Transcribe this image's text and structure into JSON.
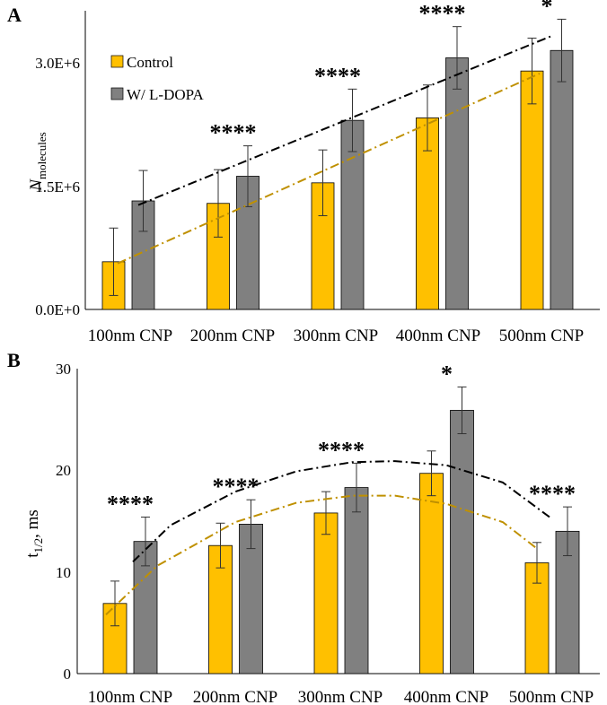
{
  "chart_data": [
    {
      "panel_label": "A",
      "type": "bar",
      "categories": [
        "100nm CNP",
        "200nm CNP",
        "300nm CNP",
        "400nm CNP",
        "500nm CNP"
      ],
      "series": [
        {
          "name": "Control",
          "values": [
            580000,
            1290000,
            1540000,
            2330000,
            2900000
          ],
          "errors": [
            410000,
            410000,
            400000,
            400000,
            400000
          ],
          "color": "#FFC000"
        },
        {
          "name": "W/ L-DOPA",
          "values": [
            1320000,
            1620000,
            2300000,
            3060000,
            3150000
          ],
          "errors": [
            370000,
            370000,
            380000,
            380000,
            380000
          ],
          "color": "#808080"
        }
      ],
      "significance": [
        "",
        "****",
        "****",
        "****",
        "*"
      ],
      "trendlines": [
        {
          "series": "W/ L-DOPA",
          "color": "#000000",
          "style": "dash-dot",
          "from": 1270000,
          "to": 3320000
        },
        {
          "series": "Control",
          "color": "#BF9000",
          "style": "dash-dot",
          "from": 560000,
          "to": 2870000
        }
      ],
      "yticks": [
        "0.0E+0",
        "1.5E+6",
        "3.0E+6"
      ],
      "ylim": [
        0,
        3600000
      ],
      "ylabel_main": "N",
      "ylabel_sub": "molecules",
      "legend_position": "top-left"
    },
    {
      "panel_label": "B",
      "type": "bar",
      "categories": [
        "100nm CNP",
        "200nm CNP",
        "300nm CNP",
        "400nm CNP",
        "500nm CNP"
      ],
      "series": [
        {
          "name": "Control",
          "values": [
            6.9,
            12.6,
            15.8,
            19.7,
            10.9
          ],
          "errors": [
            2.2,
            2.2,
            2.1,
            2.2,
            2.0
          ],
          "color": "#FFC000"
        },
        {
          "name": "W/ L-DOPA",
          "values": [
            13.0,
            14.7,
            18.3,
            25.9,
            14.0
          ],
          "errors": [
            2.4,
            2.4,
            2.4,
            2.3,
            2.4
          ],
          "color": "#808080"
        }
      ],
      "significance": [
        "****",
        "****",
        "****",
        "*",
        "****"
      ],
      "trendlines": [
        {
          "series": "W/ L-DOPA",
          "color": "#000000",
          "style": "dash-dot"
        },
        {
          "series": "Control",
          "color": "#BF9000",
          "style": "dash-dot"
        }
      ],
      "yticks": [
        "0",
        "10",
        "20",
        "30"
      ],
      "ylim": [
        0,
        30
      ],
      "ylabel_main": "t",
      "ylabel_sub": "1/2",
      "ylabel_unit": ", ms"
    }
  ]
}
